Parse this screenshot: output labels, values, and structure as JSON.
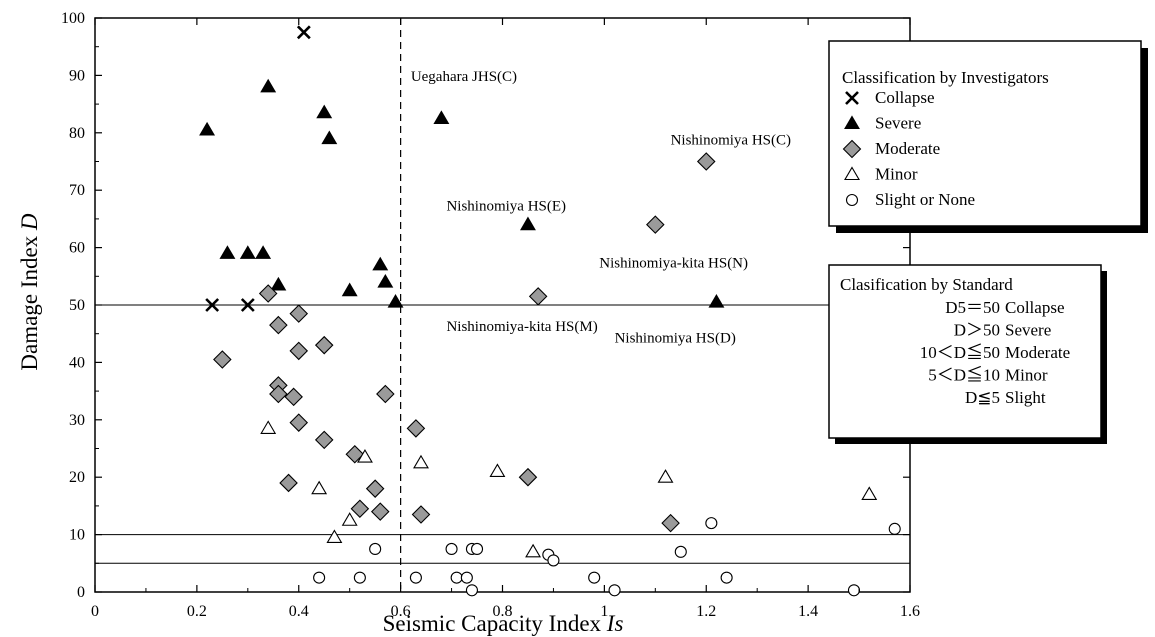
{
  "chart_data": {
    "type": "scatter",
    "xlabel": {
      "main": "Seismic Capacity Index ",
      "italic": "Is"
    },
    "ylabel": {
      "main": "Damage Index ",
      "italic": "D"
    },
    "xlim": [
      0,
      1.6
    ],
    "ylim": [
      0,
      100
    ],
    "x_ticks": [
      "0",
      "0.2",
      "0.4",
      "0.6",
      "0.8",
      "1",
      "1.2",
      "1.4",
      "1.6"
    ],
    "y_ticks": [
      "0",
      "10",
      "20",
      "30",
      "40",
      "50",
      "60",
      "70",
      "80",
      "90",
      "100"
    ],
    "reference_lines": {
      "vertical_dashed_x": 0.6,
      "horizontal_y": [
        50,
        10,
        5
      ]
    },
    "annotations": [
      {
        "text": "Uegahara JHS(C)",
        "x": 0.62,
        "y": 89
      },
      {
        "text": "Nishinomiya HS(C)",
        "x": 1.13,
        "y": 78
      },
      {
        "text": "Nishinomiya HS(E)",
        "x": 0.69,
        "y": 66.5
      },
      {
        "text": "Nishinomiya-kita HS(N)",
        "x": 0.99,
        "y": 56.5
      },
      {
        "text": "Nishinomiya-kita HS(M)",
        "x": 0.69,
        "y": 45.5
      },
      {
        "text": "Nishinomiya HS(D)",
        "x": 1.02,
        "y": 43.5
      }
    ],
    "series": [
      {
        "name": "Collapse",
        "marker": "x",
        "points": [
          [
            0.41,
            97.5
          ],
          [
            0.23,
            50
          ],
          [
            0.3,
            50
          ]
        ]
      },
      {
        "name": "Severe",
        "marker": "triangle-filled",
        "points": [
          [
            0.22,
            80.5
          ],
          [
            0.34,
            88
          ],
          [
            0.45,
            83.5
          ],
          [
            0.46,
            79
          ],
          [
            0.68,
            82.5
          ],
          [
            0.26,
            59
          ],
          [
            0.3,
            59
          ],
          [
            0.33,
            59
          ],
          [
            0.36,
            53.5
          ],
          [
            0.5,
            52.5
          ],
          [
            0.56,
            57
          ],
          [
            0.57,
            54
          ],
          [
            0.59,
            50.5
          ],
          [
            0.85,
            64
          ],
          [
            1.22,
            50.5
          ]
        ]
      },
      {
        "name": "Moderate",
        "marker": "diamond-gray",
        "points": [
          [
            1.2,
            75
          ],
          [
            1.1,
            64
          ],
          [
            0.87,
            51.5
          ],
          [
            0.34,
            52
          ],
          [
            0.4,
            48.5
          ],
          [
            0.36,
            46.5
          ],
          [
            0.25,
            40.5
          ],
          [
            0.4,
            42
          ],
          [
            0.45,
            43
          ],
          [
            0.36,
            36
          ],
          [
            0.36,
            34.5
          ],
          [
            0.39,
            34
          ],
          [
            0.57,
            34.5
          ],
          [
            0.4,
            29.5
          ],
          [
            0.63,
            28.5
          ],
          [
            0.45,
            26.5
          ],
          [
            0.51,
            24
          ],
          [
            0.38,
            19
          ],
          [
            0.85,
            20
          ],
          [
            0.55,
            18
          ],
          [
            0.52,
            14.5
          ],
          [
            0.56,
            14
          ],
          [
            0.64,
            13.5
          ],
          [
            1.13,
            12
          ]
        ]
      },
      {
        "name": "Minor",
        "marker": "triangle-open",
        "points": [
          [
            0.34,
            28.5
          ],
          [
            0.53,
            23.5
          ],
          [
            0.64,
            22.5
          ],
          [
            0.79,
            21
          ],
          [
            1.12,
            20
          ],
          [
            1.52,
            17
          ],
          [
            0.44,
            18
          ],
          [
            0.5,
            12.5
          ],
          [
            0.47,
            9.5
          ],
          [
            0.86,
            7
          ]
        ]
      },
      {
        "name": "Slight or None",
        "marker": "circle-open",
        "points": [
          [
            1.21,
            12
          ],
          [
            1.57,
            11
          ],
          [
            0.55,
            7.5
          ],
          [
            0.7,
            7.5
          ],
          [
            0.74,
            7.5
          ],
          [
            0.75,
            7.5
          ],
          [
            0.89,
            6.5
          ],
          [
            0.9,
            5.5
          ],
          [
            1.15,
            7
          ],
          [
            0.44,
            2.5
          ],
          [
            0.52,
            2.5
          ],
          [
            0.63,
            2.5
          ],
          [
            0.71,
            2.5
          ],
          [
            0.73,
            2.5
          ],
          [
            0.98,
            2.5
          ],
          [
            1.24,
            2.5
          ],
          [
            0.74,
            0.3
          ],
          [
            1.02,
            0.3
          ],
          [
            1.49,
            0.3
          ]
        ]
      }
    ],
    "legend_investigators": {
      "title": "Classification by Investigators",
      "placement": "upper-right",
      "items": [
        "Collapse",
        "Severe",
        "Moderate",
        "Minor",
        "Slight or None"
      ]
    },
    "legend_standard": {
      "title": "Clasification by Standard",
      "placement": "right",
      "rows": [
        {
          "cond": "D5＝50",
          "label": "Collapse"
        },
        {
          "cond": "D＞50",
          "label": "Severe"
        },
        {
          "cond": "10＜D≦50",
          "label": "Moderate"
        },
        {
          "cond": "5＜D≦10",
          "label": "Minor"
        },
        {
          "cond": "D≦5",
          "label": "Slight"
        }
      ]
    }
  }
}
